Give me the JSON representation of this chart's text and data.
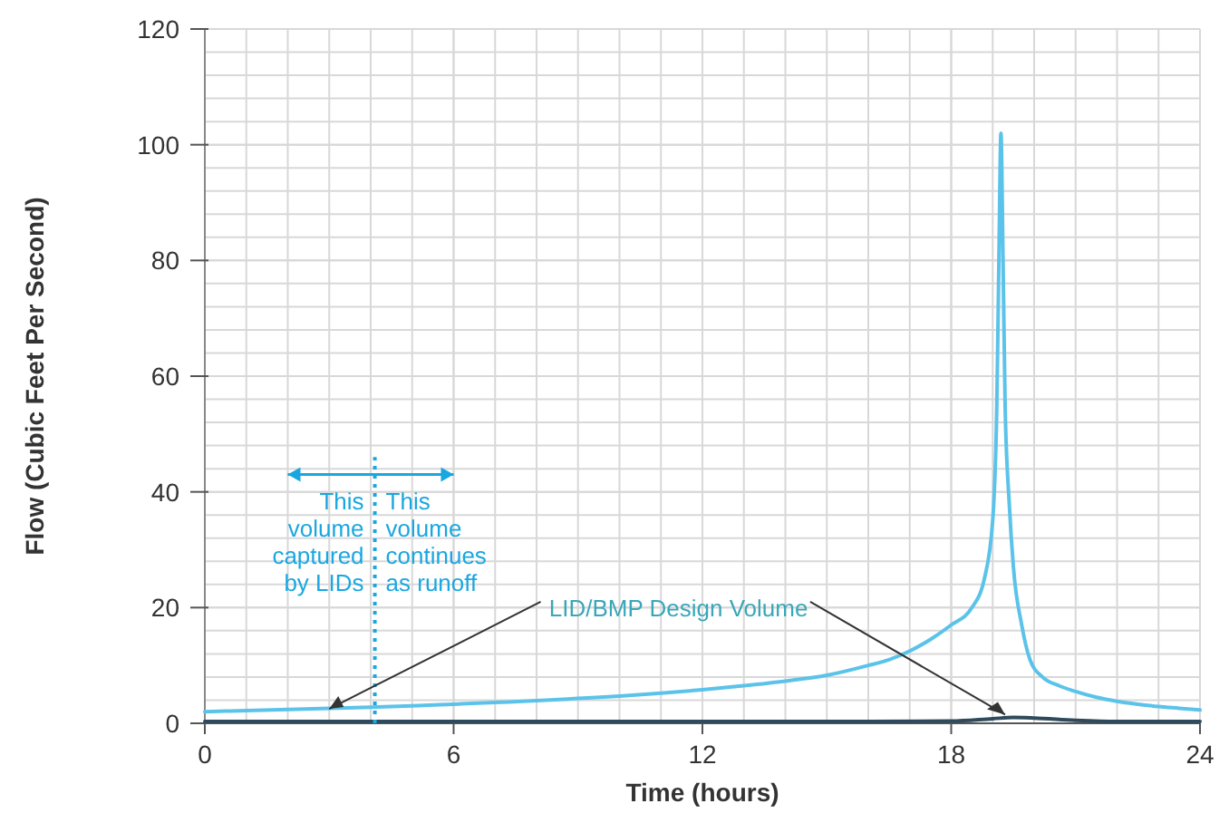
{
  "chart_data": {
    "type": "line",
    "xlabel": "Time (hours)",
    "ylabel": "Flow (Cubic Feet Per Second)",
    "xlim": [
      0,
      24
    ],
    "xticks": [
      0,
      6,
      12,
      18,
      24
    ],
    "ylim": [
      0,
      120
    ],
    "yticks": [
      0,
      20,
      40,
      60,
      80,
      100,
      120
    ],
    "grid": true,
    "marker": "none",
    "line_style": "solid",
    "series": [
      {
        "color": "#5bc3ea",
        "x": [
          0,
          1,
          2,
          3,
          4,
          5,
          6,
          7,
          8,
          9,
          10,
          11,
          12,
          13,
          14,
          15,
          16,
          16.5,
          17,
          17.5,
          18,
          18.5,
          18.8,
          19,
          19.1,
          19.15,
          19.2,
          19.25,
          19.3,
          19.4,
          19.5,
          19.7,
          19.9,
          20.2,
          20.6,
          21,
          21.5,
          22,
          22.5,
          23,
          23.5,
          24
        ],
        "values": [
          2,
          2.2,
          2.4,
          2.6,
          2.8,
          3,
          3.3,
          3.6,
          3.9,
          4.3,
          4.7,
          5.2,
          5.8,
          6.5,
          7.3,
          8.3,
          10,
          11,
          12.5,
          14.5,
          17,
          20,
          25,
          35,
          55,
          80,
          102,
          80,
          55,
          38,
          27,
          17,
          11,
          8,
          6.5,
          5.5,
          4.5,
          3.8,
          3.3,
          2.9,
          2.6,
          2.3
        ]
      },
      {
        "name": "LID/BMP Design Volume",
        "color": "#2e4a5c",
        "x": [
          0,
          4,
          8,
          12,
          16,
          18,
          19,
          19.5,
          20,
          21,
          22,
          24
        ],
        "values": [
          0.3,
          0.3,
          0.3,
          0.3,
          0.3,
          0.4,
          0.8,
          1,
          0.9,
          0.5,
          0.3,
          0.3
        ]
      }
    ],
    "ref_lines": [
      {
        "axis": "x",
        "value": 4.1,
        "color": "#1aa7e0",
        "line_style": "dotted"
      }
    ],
    "annotations": [
      "This volume captured by LIDs",
      "This volume continues as runoff"
    ]
  }
}
